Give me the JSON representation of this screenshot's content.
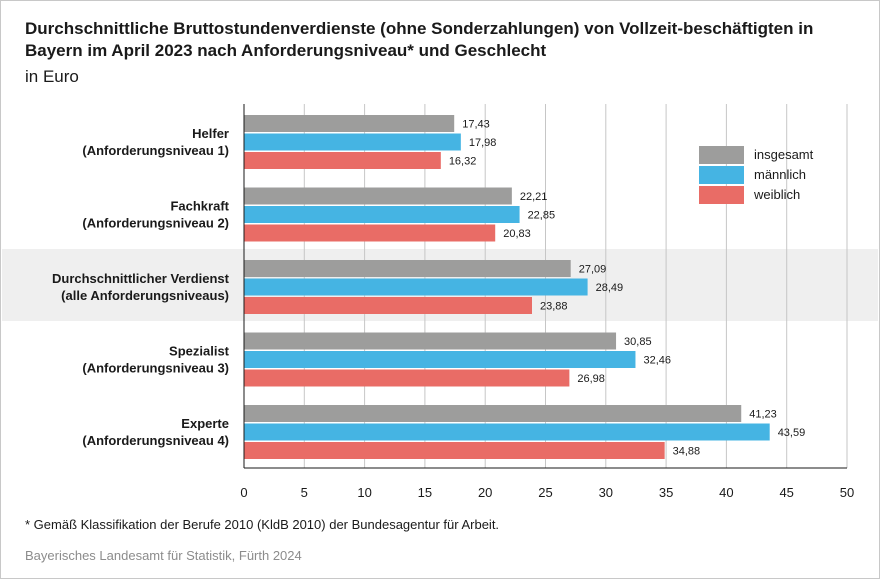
{
  "header": {
    "title": "Durchschnittliche Bruttostundenverdienste (ohne Sonderzahlungen) von Vollzeit-beschäftigten in Bayern im April 2023 nach Anforderungsniveau* und Geschlecht",
    "subtitle": "in Euro"
  },
  "footer": {
    "footnote": "* Gemäß Klassifikation der Berufe 2010 (KldB 2010) der Bundesagentur für Arbeit.",
    "source": "Bayerisches Landesamt für Statistik, Fürth 2024"
  },
  "chart_data": {
    "type": "bar",
    "orientation": "horizontal",
    "title": "Durchschnittliche Bruttostundenverdienste (ohne Sonderzahlungen) von Vollzeit-beschäftigten in Bayern im April 2023 nach Anforderungsniveau* und Geschlecht",
    "subtitle": "in Euro",
    "xlabel": "",
    "ylabel": "",
    "categories": [
      [
        "Helfer",
        "(Anforderungsniveau 1)"
      ],
      [
        "Fachkraft",
        "(Anforderungsniveau 2)"
      ],
      [
        "Durchschnittlicher Verdienst",
        "(alle Anforderungsniveaus)"
      ],
      [
        "Spezialist",
        "(Anforderungsniveau 3)"
      ],
      [
        "Experte",
        "(Anforderungsniveau 4)"
      ]
    ],
    "highlighted_category_index": 2,
    "series": [
      {
        "name": "insgesamt",
        "color": "#9d9d9c",
        "values": [
          17.43,
          22.21,
          27.09,
          30.85,
          41.23
        ]
      },
      {
        "name": "männlich",
        "color": "#45b4e3",
        "values": [
          17.98,
          22.85,
          28.49,
          32.46,
          43.59
        ]
      },
      {
        "name": "weiblich",
        "color": "#e96c66",
        "values": [
          16.32,
          20.83,
          23.88,
          26.98,
          34.88
        ]
      }
    ],
    "value_labels": [
      [
        "17,43",
        "22,21",
        "27,09",
        "30,85",
        "41,23"
      ],
      [
        "17,98",
        "22,85",
        "28,49",
        "32,46",
        "43,59"
      ],
      [
        "16,32",
        "20,83",
        "23,88",
        "26,98",
        "34,88"
      ]
    ],
    "xlim": [
      0,
      50
    ],
    "xticks": [
      0,
      5,
      10,
      15,
      20,
      25,
      30,
      35,
      40,
      45,
      50
    ],
    "grid": true,
    "legend_position": "top-right"
  }
}
